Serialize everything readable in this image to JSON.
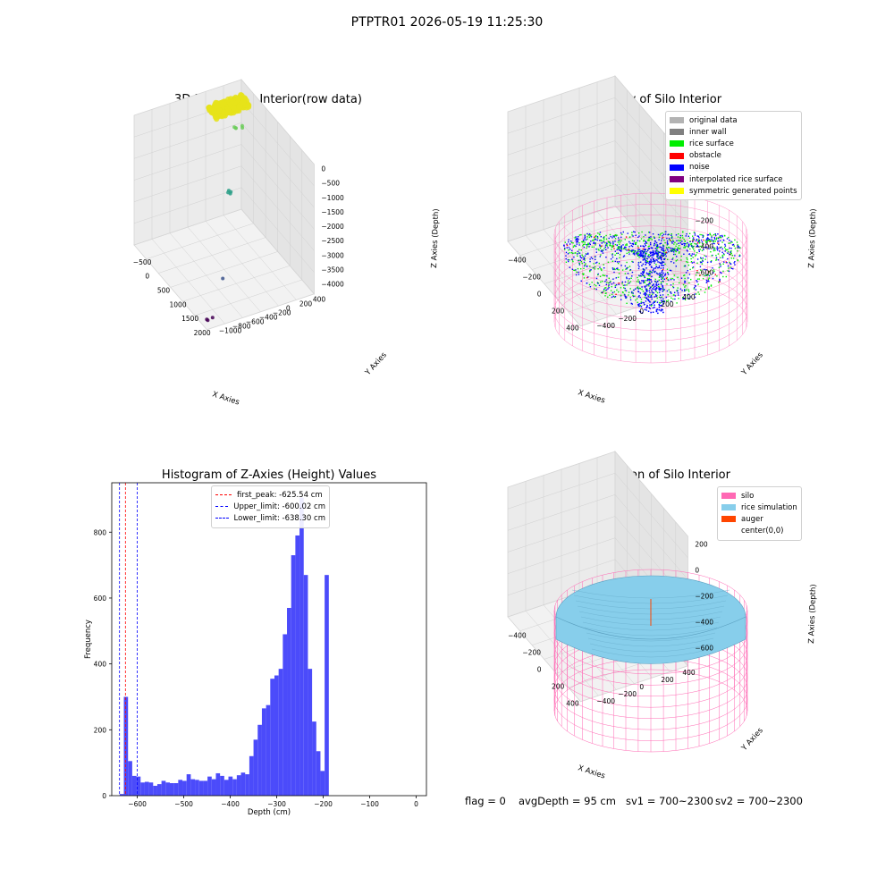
{
  "suptitle": "PTPTR01 2026-05-19 11:25:30",
  "status": {
    "flag": "flag = 0",
    "avg_depth": "avgDepth = 95 cm",
    "sv1": "sv1 = 700~2300",
    "sv2": "sv2 = 700~2300"
  },
  "chart_data": [
    {
      "type": "scatter",
      "title": "3D Plot of Silo Interior(row data)",
      "xlabel": "X Axies",
      "ylabel": "Y Axies",
      "zlabel": "Z Axies (Depth)",
      "xticks": [
        "−500",
        "0",
        "500",
        "1000",
        "1500",
        "2000"
      ],
      "yticks": [
        "400",
        "200",
        "0",
        "−200",
        "−400",
        "−600",
        "−800",
        "−1000"
      ],
      "zticks": [
        "0",
        "−500",
        "−1000",
        "−1500",
        "−2000",
        "−2500",
        "−3000",
        "−3500",
        "−4000"
      ],
      "xlim": [
        -550,
        2150
      ],
      "ylim": [
        -1100,
        450
      ],
      "zlim": [
        -4100,
        100
      ],
      "clusters": [
        {
          "color": "#e6e31a",
          "x": -100,
          "y": 100,
          "z": -50,
          "count": 300
        },
        {
          "color": "#6ccd5a",
          "x": 0,
          "y": 200,
          "z": -700,
          "count": 5
        },
        {
          "color": "#2a9f87",
          "x": 300,
          "y": -50,
          "z": -2300,
          "count": 4
        },
        {
          "color": "#3b528b",
          "x": 1300,
          "y": -600,
          "z": -3700,
          "count": 1
        },
        {
          "color": "#440154",
          "x": 2000,
          "y": -1000,
          "z": -4000,
          "count": 3
        }
      ]
    },
    {
      "type": "scatter",
      "title": "3D classify of Silo Interior",
      "xlabel": "X Axies",
      "ylabel": "Y Axies",
      "zlabel": "Z Axies (Depth)",
      "xticks": [
        "−400",
        "−200",
        "0",
        "200",
        "400"
      ],
      "yticks": [
        "400",
        "200",
        "0",
        "−200",
        "−400"
      ],
      "zticks": [
        "200",
        "0",
        "−200",
        "−400",
        "−600"
      ],
      "legend": [
        {
          "label": "original data",
          "color": "#b3b3b3"
        },
        {
          "label": "inner wall",
          "color": "#808080"
        },
        {
          "label": "rice surface",
          "color": "#00ee00"
        },
        {
          "label": "obstacle",
          "color": "#ff0000"
        },
        {
          "label": "noise",
          "color": "#0000ff"
        },
        {
          "label": "interpolated rice surface",
          "color": "#800080"
        },
        {
          "label": "symmetric generated points",
          "color": "#ffff00"
        }
      ],
      "silo_color": "#ff69b4"
    },
    {
      "type": "bar",
      "title": "Histogram of Z-Axies (Height) Values",
      "xlabel": "Depth (cm)",
      "ylabel": "Frequency",
      "xlim": [
        -655,
        22
      ],
      "ylim": [
        0,
        950
      ],
      "xticks": [
        -600,
        -500,
        -400,
        -300,
        -200,
        -100,
        0
      ],
      "xtick_labels": [
        "−600",
        "−500",
        "−400",
        "−300",
        "−200",
        "−100",
        "0"
      ],
      "yticks": [
        0,
        200,
        400,
        600,
        800
      ],
      "bin_start": -638,
      "bin_width": 9,
      "values": [
        5,
        300,
        105,
        60,
        58,
        40,
        42,
        40,
        30,
        35,
        45,
        40,
        38,
        38,
        48,
        45,
        65,
        50,
        48,
        45,
        45,
        58,
        50,
        68,
        60,
        48,
        58,
        50,
        62,
        70,
        65,
        120,
        170,
        215,
        265,
        275,
        355,
        365,
        385,
        490,
        570,
        730,
        790,
        905,
        670,
        385,
        225,
        135,
        75,
        670
      ],
      "bar_color": "#4b4bfa",
      "lines": [
        {
          "label": "first_peak: -625.54 cm",
          "value": -625.54,
          "color": "#ff0000"
        },
        {
          "label": "Upper_limit: -600.02 cm",
          "value": -600.02,
          "color": "#0000ff"
        },
        {
          "label": "Lower_limit: -638.30 cm",
          "value": -638.3,
          "color": "#0000ff"
        }
      ]
    },
    {
      "type": "area",
      "title": "3D simulation of Silo Interior",
      "xlabel": "X Axies",
      "ylabel": "Y Axies",
      "zlabel": "Z Axies (Depth)",
      "xticks": [
        "−400",
        "−200",
        "0",
        "200",
        "400"
      ],
      "yticks": [
        "400",
        "200",
        "0",
        "−200",
        "−400"
      ],
      "zticks": [
        "200",
        "0",
        "−200",
        "−400",
        "−600"
      ],
      "legend": [
        {
          "label": "silo",
          "color": "#ff69b4"
        },
        {
          "label": "rice simulation",
          "color": "#87ceeb"
        },
        {
          "label": "auger",
          "color": "#ff4500"
        },
        {
          "label": "center(0,0)",
          "color": "#ffffff"
        }
      ]
    }
  ]
}
